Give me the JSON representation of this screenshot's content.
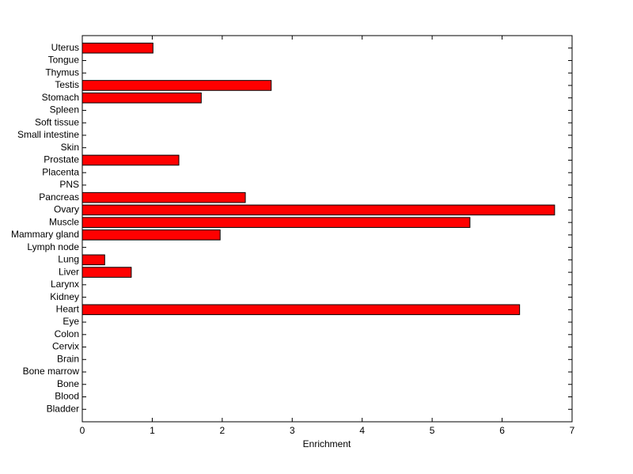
{
  "chart_data": {
    "type": "barh",
    "x_label": "Enrichment",
    "categories": [
      "Bladder",
      "Blood",
      "Bone",
      "Bone marrow",
      "Brain",
      "Cervix",
      "Colon",
      "Eye",
      "Heart",
      "Kidney",
      "Larynx",
      "Liver",
      "Lung",
      "Lymph node",
      "Mammary gland",
      "Muscle",
      "Ovary",
      "Pancreas",
      "PNS",
      "Placenta",
      "Prostate",
      "Skin",
      "Small intestine",
      "Soft tissue",
      "Spleen",
      "Stomach",
      "Testis",
      "Thymus",
      "Tongue",
      "Uterus"
    ],
    "values": [
      0,
      0,
      0,
      0,
      0,
      0,
      0,
      0,
      6.25,
      0,
      0,
      0.7,
      0.32,
      0,
      1.97,
      5.54,
      6.75,
      2.33,
      0,
      0,
      1.38,
      0,
      0,
      0,
      0,
      1.7,
      2.7,
      0,
      0,
      1.01
    ],
    "color": "#ff0000",
    "xlim": [
      0,
      7
    ],
    "xticks": [
      0,
      1,
      2,
      3,
      4,
      5,
      6,
      7
    ]
  }
}
